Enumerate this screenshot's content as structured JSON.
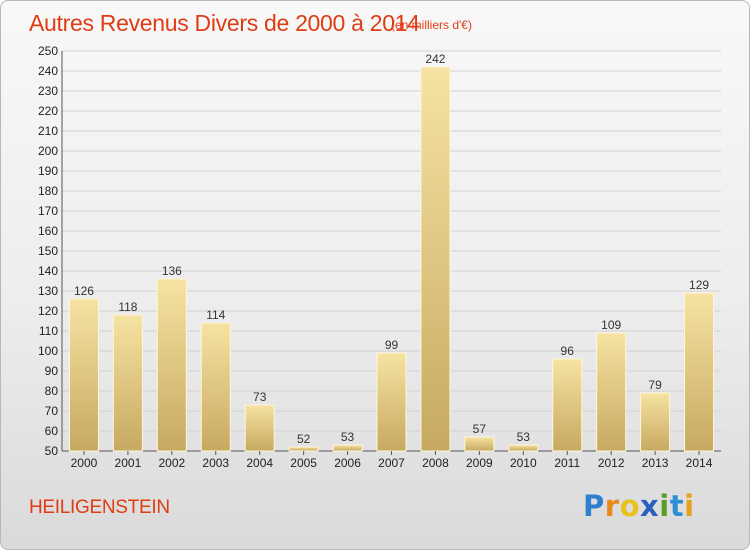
{
  "title": "Autres Revenus Divers de 2000 à 2014",
  "subtitle": "(en milliers d'€)",
  "place": "HEILIGENSTEIN",
  "logo": {
    "letters": [
      "P",
      "r",
      "o",
      "x",
      "i",
      "t",
      "i"
    ],
    "colors": [
      "#2f7fd0",
      "#e8891c",
      "#e8c21c",
      "#2b60c0",
      "#5a9e2a",
      "#2c8fd6",
      "#e4a11a"
    ]
  },
  "chart_data": {
    "type": "bar",
    "categories": [
      "2000",
      "2001",
      "2002",
      "2003",
      "2004",
      "2005",
      "2006",
      "2007",
      "2008",
      "2009",
      "2010",
      "2011",
      "2012",
      "2013",
      "2014"
    ],
    "values": [
      126,
      118,
      136,
      114,
      73,
      52,
      53,
      99,
      242,
      57,
      53,
      96,
      109,
      79,
      129
    ],
    "ylim": [
      50,
      250
    ],
    "yticks": [
      50,
      60,
      70,
      80,
      90,
      100,
      110,
      120,
      130,
      140,
      150,
      160,
      170,
      180,
      190,
      200,
      210,
      220,
      230,
      240,
      250
    ],
    "grid": true,
    "bar_color": "#e8cf86"
  }
}
